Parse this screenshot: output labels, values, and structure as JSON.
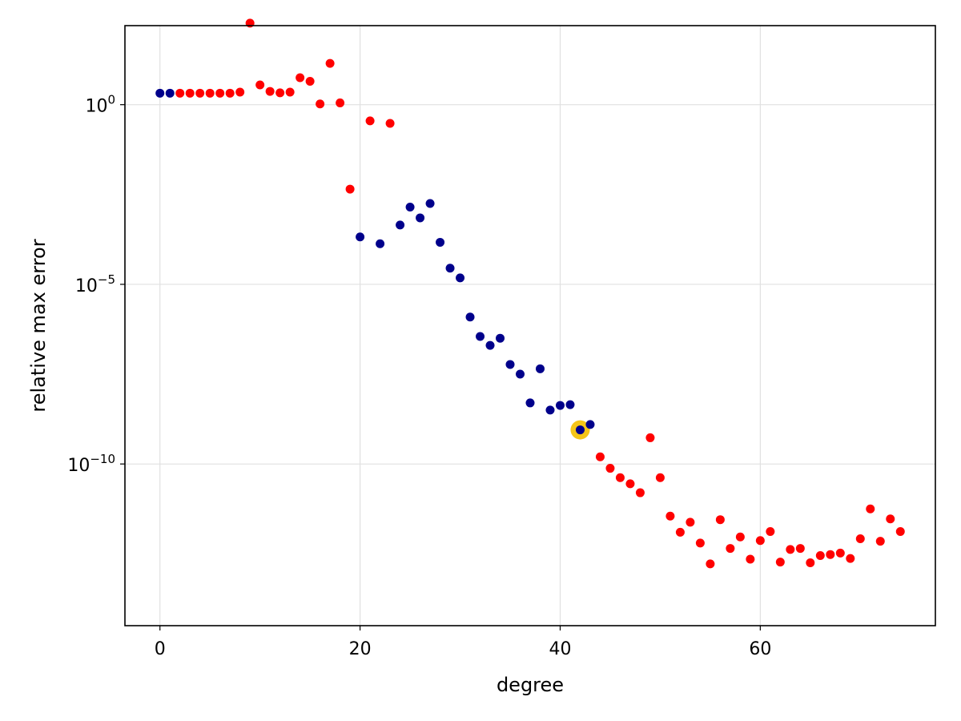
{
  "chart_data": {
    "type": "scatter",
    "xlabel": "degree",
    "ylabel": "relative max error",
    "xlim": [
      -3.5,
      77.5
    ],
    "ylim": [
      -14.5,
      2.2
    ],
    "y_scale": "log10",
    "grid": true,
    "x_ticks": [
      {
        "value": 0,
        "label": "0"
      },
      {
        "value": 20,
        "label": "20"
      },
      {
        "value": 40,
        "label": "40"
      },
      {
        "value": 60,
        "label": "60"
      }
    ],
    "y_ticks": [
      {
        "value": 0,
        "base": "10",
        "exponent": "0"
      },
      {
        "value": -5,
        "base": "10",
        "exponent": "−5"
      },
      {
        "value": -10,
        "base": "10",
        "exponent": "−10"
      }
    ],
    "colors": {
      "blue_series": "#00008b",
      "red_series": "#ff0000",
      "highlight": "#f5c518",
      "grid": "#e0e0e0",
      "frame": "#000000"
    },
    "series": [
      {
        "color": "#00008b",
        "points": [
          [
            0,
            0.32
          ],
          [
            1,
            0.32
          ],
          [
            20,
            -3.68
          ],
          [
            22,
            -3.87
          ],
          [
            24,
            -3.35
          ],
          [
            25,
            -2.85
          ],
          [
            26,
            -3.15
          ],
          [
            27,
            -2.75
          ],
          [
            28,
            -3.83
          ],
          [
            29,
            -4.55
          ],
          [
            30,
            -4.82
          ],
          [
            31,
            -5.91
          ],
          [
            32,
            -6.45
          ],
          [
            33,
            -6.7
          ],
          [
            34,
            -6.5
          ],
          [
            35,
            -7.23
          ],
          [
            36,
            -7.5
          ],
          [
            37,
            -8.3
          ],
          [
            38,
            -7.35
          ],
          [
            39,
            -8.5
          ],
          [
            40,
            -8.37
          ],
          [
            41,
            -8.35
          ],
          [
            42,
            -9.05
          ],
          [
            43,
            -8.9
          ]
        ]
      },
      {
        "color": "#ff0000",
        "points": [
          [
            2,
            0.32
          ],
          [
            3,
            0.32
          ],
          [
            4,
            0.32
          ],
          [
            5,
            0.32
          ],
          [
            6,
            0.32
          ],
          [
            7,
            0.32
          ],
          [
            8,
            0.35
          ],
          [
            9,
            2.27
          ],
          [
            10,
            0.55
          ],
          [
            11,
            0.37
          ],
          [
            12,
            0.33
          ],
          [
            13,
            0.35
          ],
          [
            14,
            0.75
          ],
          [
            15,
            0.65
          ],
          [
            16,
            0.02
          ],
          [
            17,
            1.15
          ],
          [
            18,
            0.05
          ],
          [
            19,
            -2.35
          ],
          [
            21,
            -0.45
          ],
          [
            23,
            -0.52
          ],
          [
            44,
            -9.8
          ],
          [
            45,
            -10.12
          ],
          [
            46,
            -10.38
          ],
          [
            47,
            -10.55
          ],
          [
            48,
            -10.8
          ],
          [
            49,
            -9.27
          ],
          [
            50,
            -10.38
          ],
          [
            51,
            -11.45
          ],
          [
            52,
            -11.9
          ],
          [
            53,
            -11.62
          ],
          [
            54,
            -12.2
          ],
          [
            55,
            -12.78
          ],
          [
            56,
            -11.55
          ],
          [
            57,
            -12.35
          ],
          [
            58,
            -12.03
          ],
          [
            59,
            -12.65
          ],
          [
            60,
            -12.13
          ],
          [
            61,
            -11.88
          ],
          [
            62,
            -12.73
          ],
          [
            63,
            -12.38
          ],
          [
            64,
            -12.35
          ],
          [
            65,
            -12.75
          ],
          [
            66,
            -12.55
          ],
          [
            67,
            -12.52
          ],
          [
            68,
            -12.48
          ],
          [
            69,
            -12.63
          ],
          [
            70,
            -12.08
          ],
          [
            71,
            -11.25
          ],
          [
            72,
            -12.15
          ],
          [
            73,
            -11.53
          ],
          [
            74,
            -11.88
          ]
        ]
      }
    ],
    "highlight_point": [
      42,
      -9.05
    ]
  }
}
